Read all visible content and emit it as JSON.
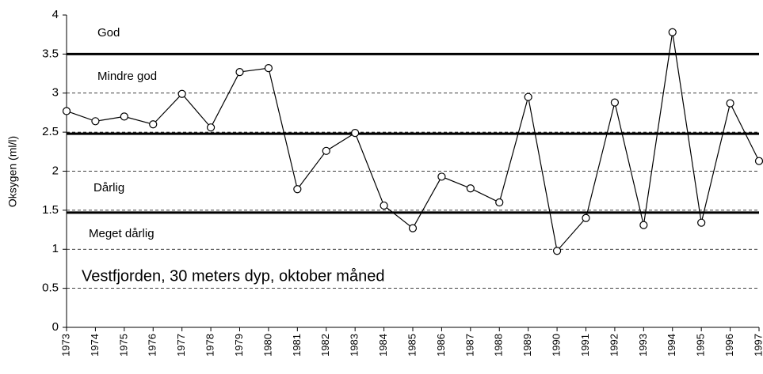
{
  "chart_data": {
    "type": "line",
    "y_label": "Oksygen (ml/l)",
    "annotation": "Vestfjorden, 30 meters dyp, oktober måned",
    "zones": [
      "God",
      "Mindre god",
      "Dårlig",
      "Meget dårlig"
    ],
    "thresholds": [
      3.5,
      2.48,
      1.47
    ],
    "x": [
      1973,
      1974,
      1975,
      1976,
      1977,
      1978,
      1979,
      1980,
      1981,
      1982,
      1983,
      1984,
      1985,
      1986,
      1987,
      1988,
      1989,
      1990,
      1991,
      1992,
      1993,
      1994,
      1995,
      1996,
      1997
    ],
    "series": [
      {
        "color": "#000000",
        "values": [
          2.77,
          2.64,
          2.7,
          2.6,
          2.99,
          2.56,
          3.27,
          3.32,
          1.77,
          2.26,
          2.49,
          1.56,
          1.27,
          1.93,
          1.78,
          1.6,
          2.95,
          0.98,
          1.4,
          2.88,
          1.31,
          3.78,
          1.34,
          2.87,
          2.13
        ]
      }
    ],
    "xlim": [
      1973,
      1997
    ],
    "xticks": [
      1973,
      1974,
      1975,
      1976,
      1977,
      1978,
      1979,
      1980,
      1981,
      1982,
      1983,
      1984,
      1985,
      1986,
      1987,
      1988,
      1989,
      1990,
      1991,
      1992,
      1993,
      1994,
      1995,
      1996,
      1997
    ],
    "ylim": [
      0,
      4
    ],
    "yticks": [
      0,
      0.5,
      1,
      1.5,
      2,
      2.5,
      3,
      3.5,
      4
    ],
    "grid": true
  }
}
